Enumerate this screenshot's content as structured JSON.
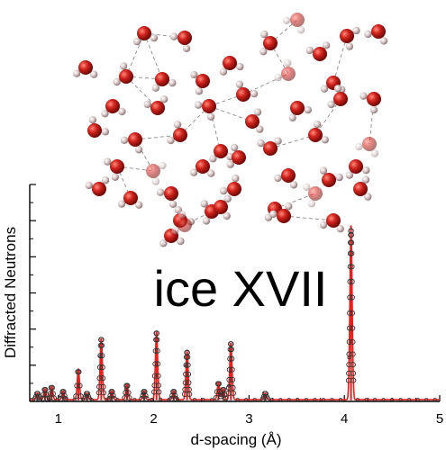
{
  "chart_data": {
    "type": "line",
    "annotation": "ice XVII",
    "xlabel": "d-spacing (Å)",
    "ylabel": "Diffracted Neutrons",
    "xlim": [
      0.7,
      5.0
    ],
    "ylim": [
      0,
      1.0
    ],
    "x_ticks": [
      "1",
      "2",
      "3",
      "4",
      "5"
    ],
    "grid": false,
    "legend": "none",
    "series": [
      {
        "role": "observed",
        "marker": "open-circle",
        "color": "#333333",
        "peaks": [
          {
            "x": 0.78,
            "y": 0.03
          },
          {
            "x": 0.86,
            "y": 0.05
          },
          {
            "x": 0.93,
            "y": 0.06
          },
          {
            "x": 1.05,
            "y": 0.04
          },
          {
            "x": 1.21,
            "y": 0.14
          },
          {
            "x": 1.3,
            "y": 0.03
          },
          {
            "x": 1.45,
            "y": 0.28
          },
          {
            "x": 1.56,
            "y": 0.04
          },
          {
            "x": 1.72,
            "y": 0.07
          },
          {
            "x": 1.9,
            "y": 0.04
          },
          {
            "x": 2.03,
            "y": 0.31
          },
          {
            "x": 2.21,
            "y": 0.04
          },
          {
            "x": 2.35,
            "y": 0.22
          },
          {
            "x": 2.68,
            "y": 0.08
          },
          {
            "x": 2.73,
            "y": 0.05
          },
          {
            "x": 2.81,
            "y": 0.26
          },
          {
            "x": 3.17,
            "y": 0.03
          },
          {
            "x": 4.07,
            "y": 0.78
          }
        ]
      },
      {
        "role": "fit",
        "marker": "none",
        "color": "#e8201c"
      }
    ]
  },
  "colors": {
    "observed": "#333333",
    "fit": "#e8201c",
    "axis": "#000000",
    "oxygen": "#d0221c",
    "hydrogen": "#cdb9b9",
    "bond": "#8a8a8a"
  }
}
